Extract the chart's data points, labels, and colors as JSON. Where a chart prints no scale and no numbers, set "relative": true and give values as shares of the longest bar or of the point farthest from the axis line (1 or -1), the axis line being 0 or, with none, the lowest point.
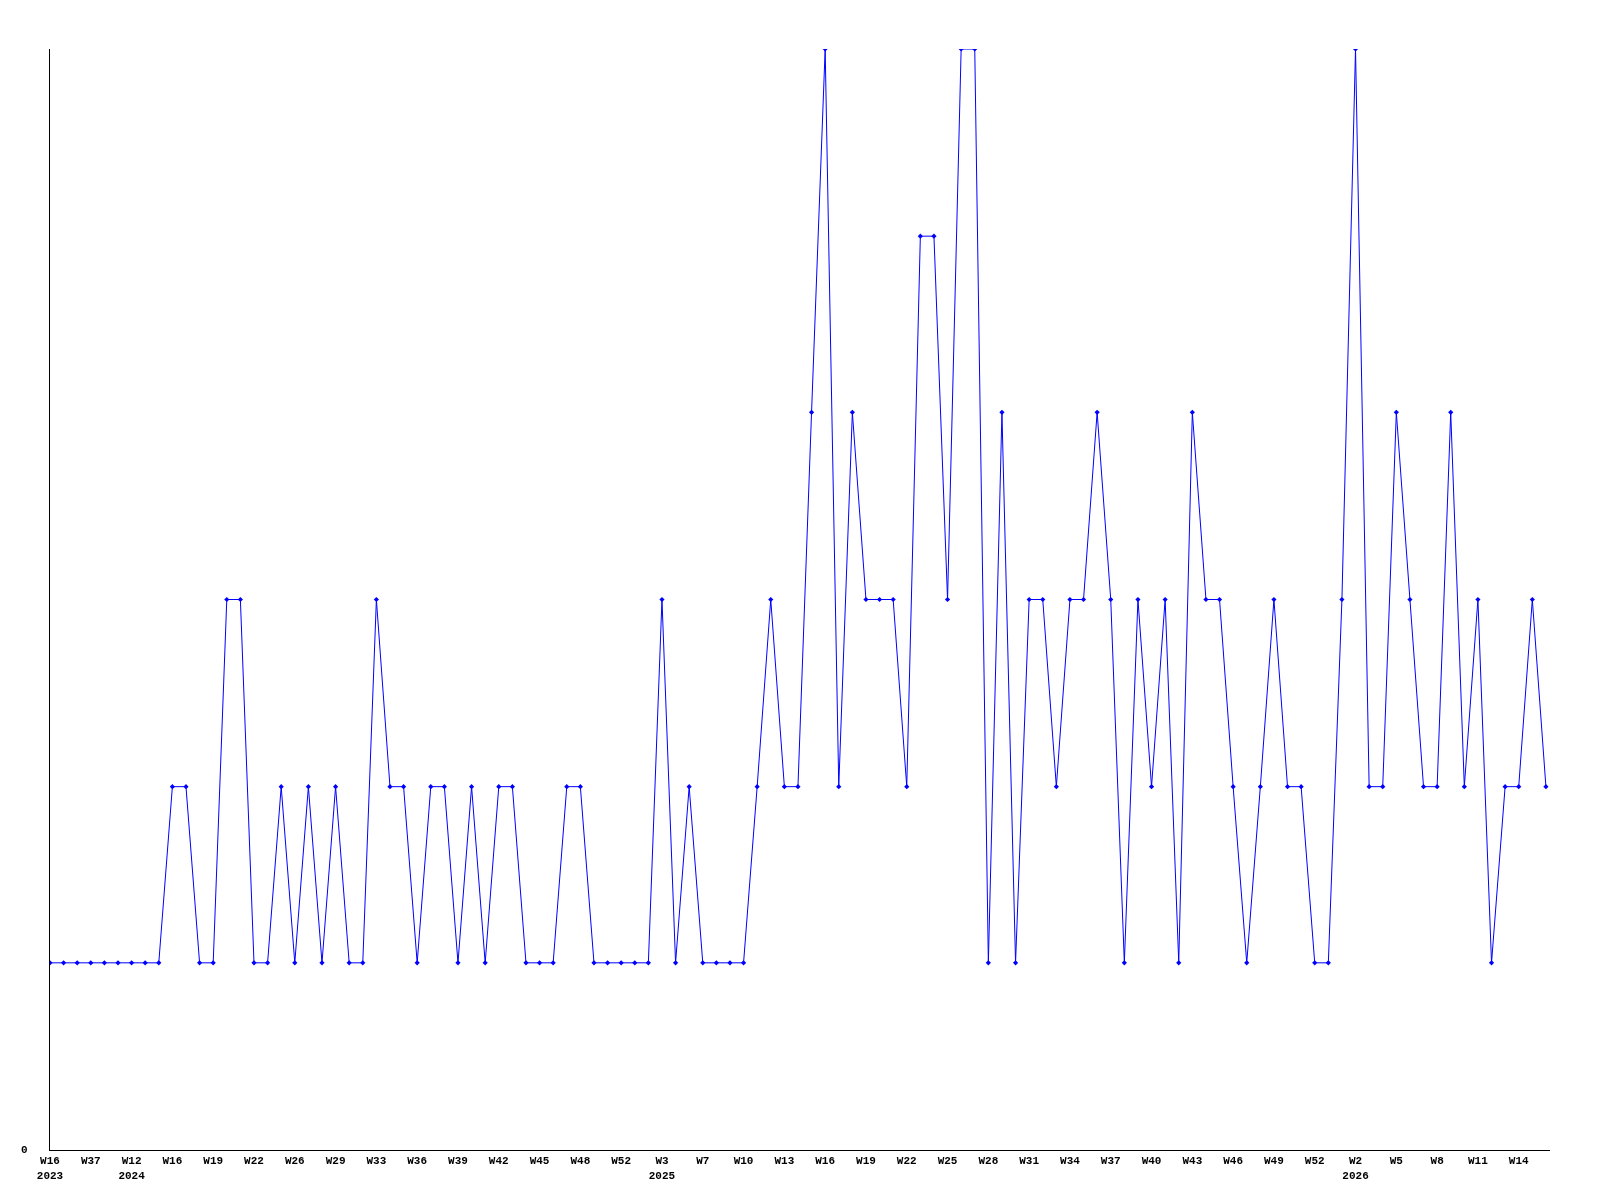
{
  "chart_data": {
    "type": "line",
    "relative": true,
    "marker": "diamond",
    "legend": false,
    "categories": [
      "W16\n2023",
      null,
      null,
      "W37",
      null,
      null,
      "W12\n2024",
      null,
      null,
      "W16",
      null,
      null,
      "W19",
      null,
      null,
      "W22",
      null,
      null,
      "W26",
      null,
      null,
      "W29",
      null,
      null,
      "W33",
      null,
      null,
      "W36",
      null,
      null,
      "W39",
      null,
      null,
      "W42",
      null,
      null,
      "W45",
      null,
      null,
      "W48",
      null,
      null,
      "W52",
      null,
      null,
      "W3\n2025",
      null,
      null,
      "W7",
      null,
      null,
      "W10",
      null,
      null,
      "W13",
      null,
      null,
      "W16",
      null,
      null,
      "W19",
      null,
      null,
      "W22",
      null,
      null,
      "W25",
      null,
      null,
      "W28",
      null,
      null,
      "W31",
      null,
      null,
      "W34",
      null,
      null,
      "W37",
      null,
      null,
      "W40",
      null,
      null,
      "W43",
      null,
      null,
      "W46",
      null,
      null,
      "W49",
      null,
      null,
      "W52",
      null,
      null,
      "W2\n2026",
      null,
      null,
      "W5",
      null,
      null,
      "W8",
      null,
      null,
      "W11",
      null,
      null,
      "W14",
      null,
      null
    ],
    "series": [
      {
        "color": "#0000ff",
        "values": [
          0.17,
          0.17,
          0.17,
          0.17,
          0.17,
          0.17,
          0.17,
          0.17,
          0.17,
          0.33,
          0.33,
          0.17,
          0.17,
          0.5,
          0.5,
          0.17,
          0.17,
          0.33,
          0.17,
          0.33,
          0.17,
          0.33,
          0.17,
          0.17,
          0.5,
          0.33,
          0.33,
          0.17,
          0.33,
          0.33,
          0.17,
          0.33,
          0.17,
          0.33,
          0.33,
          0.17,
          0.17,
          0.17,
          0.33,
          0.33,
          0.17,
          0.17,
          0.17,
          0.17,
          0.17,
          0.5,
          0.17,
          0.33,
          0.17,
          0.17,
          0.17,
          0.17,
          0.33,
          0.5,
          0.33,
          0.33,
          0.67,
          1,
          0.33,
          0.67,
          0.5,
          0.5,
          0.5,
          0.33,
          0.83,
          0.83,
          0.5,
          1,
          1,
          0.17,
          0.67,
          0.17,
          0.5,
          0.5,
          0.33,
          0.5,
          0.5,
          0.67,
          0.5,
          0.17,
          0.5,
          0.33,
          0.5,
          0.17,
          0.67,
          0.5,
          0.5,
          0.33,
          0.17,
          0.33,
          0.5,
          0.33,
          0.33,
          0.17,
          0.17,
          0.5,
          1,
          0.33,
          0.33,
          0.67,
          0.5,
          0.33,
          0.33,
          0.67,
          0.33,
          0.5,
          0.17,
          0.33,
          0.33,
          0.5,
          0.33
        ]
      }
    ],
    "annotations": [
      "0"
    ]
  }
}
